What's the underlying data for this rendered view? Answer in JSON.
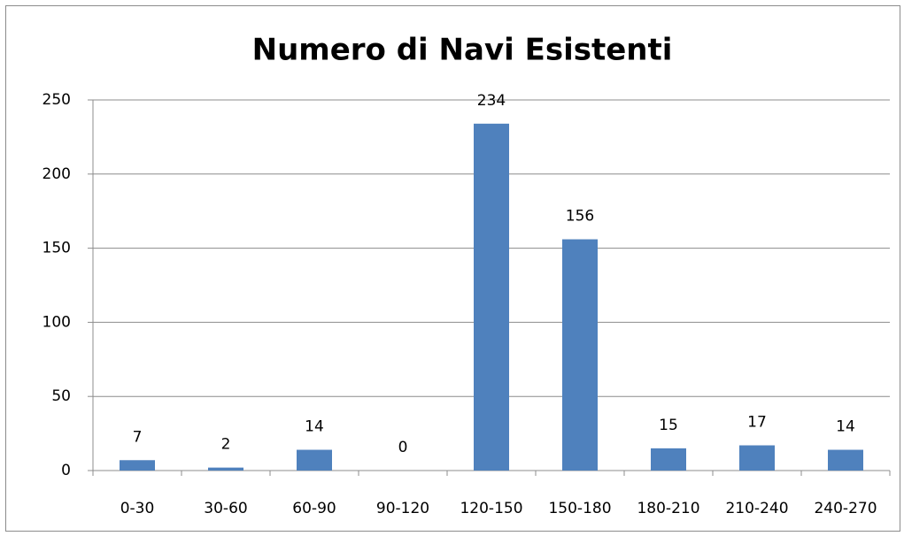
{
  "chart_data": {
    "type": "bar",
    "title": "Numero di Navi Esistenti",
    "categories": [
      "0-30",
      "30-60",
      "60-90",
      "90-120",
      "120-150",
      "150-180",
      "180-210",
      "210-240",
      "240-270"
    ],
    "values": [
      7,
      2,
      14,
      0,
      234,
      156,
      15,
      17,
      14
    ],
    "color": "#4f81bd",
    "ylim": [
      0,
      250
    ],
    "yticks": [
      0,
      50,
      100,
      150,
      200,
      250
    ],
    "grid": true
  }
}
